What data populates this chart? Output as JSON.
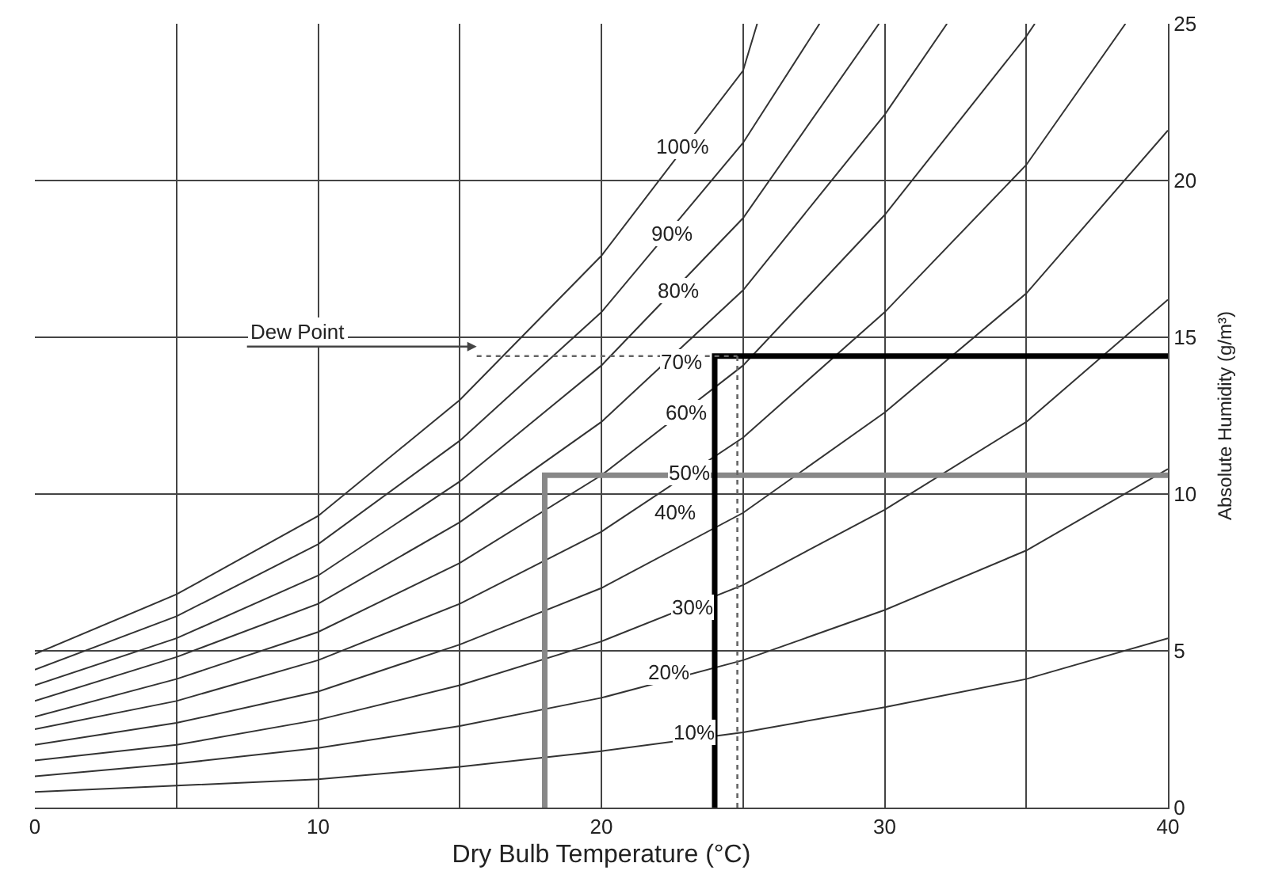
{
  "chart_data": {
    "type": "line",
    "xlabel": "Dry Bulb Temperature (°C)",
    "ylabel": "Absolute Humidity (g/m³)",
    "xlim": [
      0,
      40
    ],
    "ylim": [
      0,
      25
    ],
    "xticks": [
      0,
      {
        "value": 5,
        "label": null
      },
      10,
      {
        "value": 15,
        "label": null
      },
      20,
      {
        "value": 25,
        "label": null
      },
      30,
      {
        "value": 35,
        "label": null
      },
      40
    ],
    "yticks": [
      0,
      5,
      10,
      15,
      20,
      25
    ],
    "grid": true,
    "line_style": "solid",
    "series": [
      {
        "color": "#333333",
        "x": [
          0,
          5,
          10,
          15,
          20,
          25,
          25.5
        ],
        "values": [
          4.9,
          6.8,
          9.3,
          13.0,
          17.6,
          23.5,
          25
        ]
      },
      {
        "color": "#333333",
        "x": [
          0,
          5,
          10,
          15,
          20,
          25,
          27.7
        ],
        "values": [
          4.4,
          6.1,
          8.4,
          11.7,
          15.8,
          21.2,
          25
        ]
      },
      {
        "color": "#333333",
        "x": [
          0,
          5,
          10,
          15,
          20,
          25,
          29.8
        ],
        "values": [
          3.9,
          5.4,
          7.4,
          10.4,
          14.1,
          18.8,
          25
        ]
      },
      {
        "color": "#333333",
        "x": [
          0,
          5,
          10,
          15,
          20,
          25,
          30,
          32.2
        ],
        "values": [
          3.4,
          4.8,
          6.5,
          9.1,
          12.3,
          16.5,
          22.1,
          25
        ]
      },
      {
        "color": "#333333",
        "x": [
          0,
          5,
          10,
          15,
          20,
          25,
          30,
          35,
          35.3
        ],
        "values": [
          2.9,
          4.1,
          5.6,
          7.8,
          10.6,
          14.1,
          18.9,
          24.6,
          25
        ]
      },
      {
        "color": "#333333",
        "x": [
          0,
          5,
          10,
          15,
          20,
          25,
          30,
          35,
          38.5
        ],
        "values": [
          2.5,
          3.4,
          4.7,
          6.5,
          8.8,
          11.8,
          15.8,
          20.5,
          25
        ]
      },
      {
        "color": "#333333",
        "x": [
          0,
          5,
          10,
          15,
          20,
          25,
          30,
          35,
          40
        ],
        "values": [
          2.0,
          2.7,
          3.7,
          5.2,
          7.0,
          9.4,
          12.6,
          16.4,
          21.6
        ]
      },
      {
        "color": "#333333",
        "x": [
          0,
          5,
          10,
          15,
          20,
          25,
          30,
          35,
          40
        ],
        "values": [
          1.5,
          2.0,
          2.8,
          3.9,
          5.3,
          7.1,
          9.5,
          12.3,
          16.2
        ]
      },
      {
        "color": "#333333",
        "x": [
          0,
          5,
          10,
          15,
          20,
          25,
          30,
          35,
          40
        ],
        "values": [
          1.0,
          1.4,
          1.9,
          2.6,
          3.5,
          4.7,
          6.3,
          8.2,
          10.8
        ]
      },
      {
        "color": "#333333",
        "x": [
          0,
          5,
          10,
          15,
          20,
          25,
          30,
          35,
          40
        ],
        "values": [
          0.5,
          0.7,
          0.9,
          1.3,
          1.8,
          2.4,
          3.2,
          4.1,
          5.4
        ]
      },
      {
        "type": "step",
        "color": "#888888",
        "x": [
          18,
          40
        ],
        "values": [
          0,
          10.6
        ]
      },
      {
        "type": "step",
        "color": "#000000",
        "x": [
          24,
          40
        ],
        "values": [
          0,
          14.4
        ]
      },
      {
        "color": "#666666",
        "line_style": "dotted",
        "x": [
          24.8,
          24.8
        ],
        "values": [
          0,
          14.4
        ]
      },
      {
        "color": "#666666",
        "line_style": "dotted",
        "x": [
          15.6,
          24.8
        ],
        "values": [
          14.4,
          14.4
        ]
      }
    ],
    "annotations": [
      {
        "text": "100%",
        "x": 22.9,
        "y": 21.1
      },
      {
        "text": "90%",
        "x": 22.5,
        "y": 18.3
      },
      {
        "text": "80%",
        "x": 22.7,
        "y": 16.5
      },
      {
        "text": "70%",
        "x": 22.8,
        "y": 14.2
      },
      {
        "text": "60%",
        "x": 23.0,
        "y": 12.6
      },
      {
        "text": "50%",
        "x": 23.1,
        "y": 10.7
      },
      {
        "text": "40%",
        "x": 22.6,
        "y": 9.4
      },
      {
        "text": "30%",
        "x": 23.2,
        "y": 6.4
      },
      {
        "text": "20%",
        "x": 22.4,
        "y": 4.3
      },
      {
        "text": "10%",
        "x": 23.3,
        "y": 2.4
      },
      {
        "text": "Dew Point",
        "x": 15.6,
        "y": 14.4
      }
    ]
  }
}
